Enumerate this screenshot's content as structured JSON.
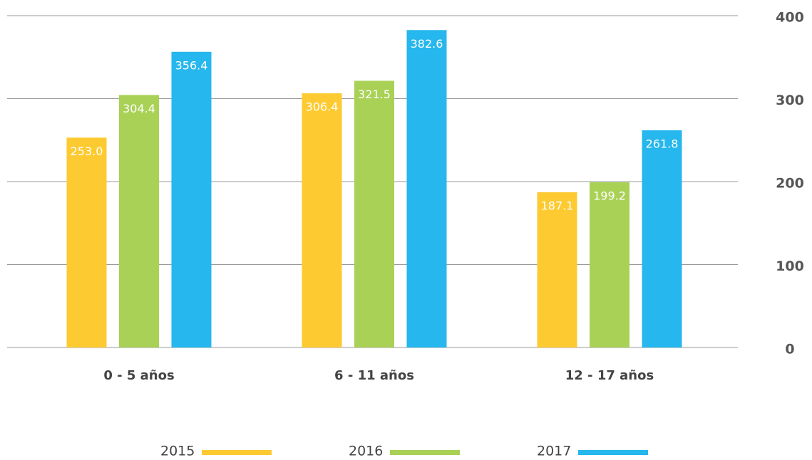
{
  "chart_data": {
    "type": "bar",
    "categories": [
      "0 - 5 años",
      "6 - 11 años",
      "12 - 17 años"
    ],
    "series": [
      {
        "name": "2015",
        "color": "#fdca31",
        "values": [
          253.0,
          306.4,
          187.1
        ],
        "value_labels": [
          "253.0",
          "306.4",
          "187.1"
        ]
      },
      {
        "name": "2016",
        "color": "#a9d156",
        "values": [
          304.4,
          321.5,
          199.2
        ],
        "value_labels": [
          "304.4",
          "321.5",
          "199.2"
        ]
      },
      {
        "name": "2017",
        "color": "#25b7ed",
        "values": [
          356.4,
          382.6,
          261.8
        ],
        "value_labels": [
          "356.4",
          "382.6",
          "261.8"
        ]
      }
    ],
    "ylim": [
      0,
      400
    ],
    "yticks": [
      0,
      100,
      200,
      300,
      400
    ],
    "grid": true,
    "y_axis_side": "right",
    "legend": "bottom"
  }
}
